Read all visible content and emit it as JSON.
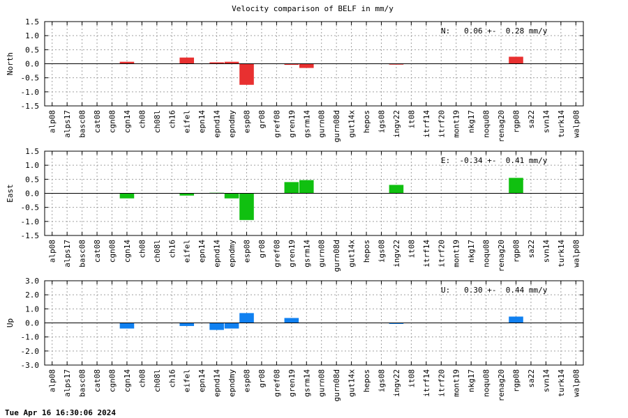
{
  "figure": {
    "title": "Velocity comparison of BELF in mm/y",
    "timestamp": "Tue Apr 16 16:30:06 2024"
  },
  "chart_data": [
    {
      "type": "bar",
      "ylabel": "North",
      "summary": "N:   0.06 +-  0.28 mm/y",
      "color": "#e83030",
      "ylim": [
        -1.5,
        1.5
      ],
      "yticks": [
        1.5,
        1.0,
        0.5,
        0.0,
        -0.5,
        -1.0,
        -1.5
      ],
      "ytick_labels": [
        "1.5",
        "1.0",
        "0.5",
        "0.0",
        "-0.5",
        "-1.0",
        "-1.5"
      ],
      "grid": true,
      "categories": [
        "alp08",
        "alps17",
        "basc08",
        "cat08",
        "cgn08",
        "cgn14",
        "ch08",
        "ch08l",
        "ch16",
        "eifel",
        "epn14",
        "epnd14",
        "epndmy",
        "esp08",
        "gr08",
        "gref08",
        "gren19",
        "gsrm14",
        "gurn08",
        "gurn08d",
        "gut14x",
        "hepos",
        "igs08",
        "ingv22",
        "it08",
        "itrf14",
        "itrf20",
        "mont19",
        "nkg17",
        "noqu08",
        "renag20",
        "rgp08",
        "sa22",
        "svn14",
        "turk14",
        "walp08"
      ],
      "values": [
        null,
        null,
        null,
        null,
        null,
        0.07,
        null,
        null,
        null,
        0.22,
        null,
        0.05,
        0.07,
        -0.75,
        null,
        null,
        -0.04,
        -0.15,
        null,
        null,
        null,
        null,
        null,
        -0.03,
        null,
        null,
        null,
        null,
        null,
        null,
        null,
        0.25,
        null,
        null,
        null,
        null
      ]
    },
    {
      "type": "bar",
      "ylabel": "East",
      "summary": "E:  -0.34 +-  0.41 mm/y",
      "color": "#10c010",
      "ylim": [
        -1.5,
        1.5
      ],
      "yticks": [
        1.5,
        1.0,
        0.5,
        0.0,
        -0.5,
        -1.0,
        -1.5
      ],
      "ytick_labels": [
        "1.5",
        "1.0",
        "0.5",
        "0.0",
        "-0.5",
        "-1.0",
        "-1.5"
      ],
      "grid": true,
      "categories": [
        "alp08",
        "alps17",
        "basc08",
        "cat08",
        "cgn08",
        "cgn14",
        "ch08",
        "ch08l",
        "ch16",
        "eifel",
        "epn14",
        "epnd14",
        "epndmy",
        "esp08",
        "gr08",
        "gref08",
        "gren19",
        "gsrm14",
        "gurn08",
        "gurn08d",
        "gut14x",
        "hepos",
        "igs08",
        "ingv22",
        "it08",
        "itrf14",
        "itrf20",
        "mont19",
        "nkg17",
        "noqu08",
        "renag20",
        "rgp08",
        "sa22",
        "svn14",
        "turk14",
        "walp08"
      ],
      "values": [
        null,
        null,
        null,
        null,
        null,
        -0.18,
        null,
        null,
        null,
        -0.08,
        null,
        0.02,
        -0.18,
        -0.95,
        null,
        null,
        0.4,
        0.47,
        null,
        null,
        null,
        null,
        null,
        0.3,
        null,
        null,
        null,
        null,
        null,
        null,
        null,
        0.55,
        null,
        null,
        null,
        null
      ]
    },
    {
      "type": "bar",
      "ylabel": "Up",
      "summary": "U:   0.30 +-  0.44 mm/y",
      "color": "#1080f0",
      "ylim": [
        -3.0,
        3.0
      ],
      "yticks": [
        3.0,
        2.0,
        1.0,
        0.0,
        -1.0,
        -2.0,
        -3.0
      ],
      "ytick_labels": [
        "3.0",
        "2.0",
        "1.0",
        "0.0",
        "-1.0",
        "-2.0",
        "-3.0"
      ],
      "grid": true,
      "categories": [
        "alp08",
        "alps17",
        "basc08",
        "cat08",
        "cgn08",
        "cgn14",
        "ch08",
        "ch08l",
        "ch16",
        "eifel",
        "epn14",
        "epnd14",
        "epndmy",
        "esp08",
        "gr08",
        "gref08",
        "gren19",
        "gsrm14",
        "gurn08",
        "gurn08d",
        "gut14x",
        "hepos",
        "igs08",
        "ingv22",
        "it08",
        "itrf14",
        "itrf20",
        "mont19",
        "nkg17",
        "noqu08",
        "renag20",
        "rgp08",
        "sa22",
        "svn14",
        "turk14",
        "walp08"
      ],
      "values": [
        null,
        null,
        null,
        null,
        null,
        -0.4,
        null,
        null,
        null,
        -0.22,
        null,
        -0.5,
        -0.4,
        0.7,
        null,
        null,
        0.35,
        null,
        null,
        null,
        null,
        null,
        null,
        -0.07,
        null,
        null,
        null,
        null,
        null,
        null,
        null,
        0.45,
        null,
        null,
        null,
        null
      ]
    }
  ]
}
